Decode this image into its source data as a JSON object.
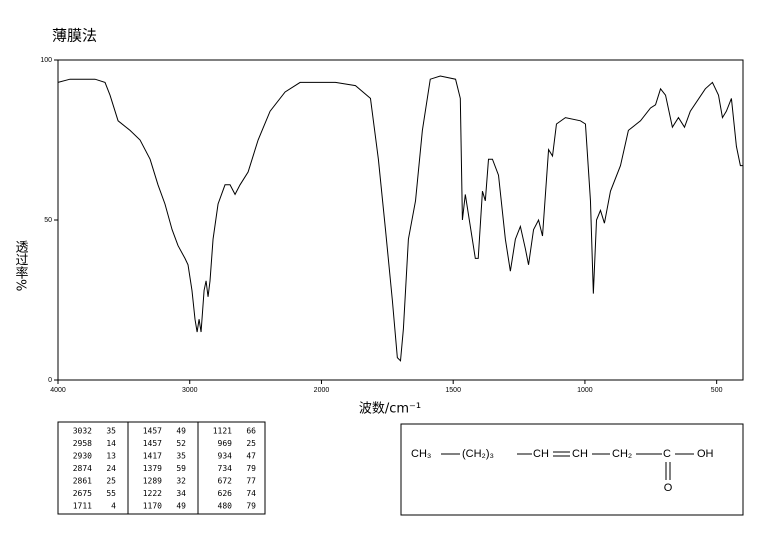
{
  "chart_data": {
    "type": "line",
    "title": "薄膜法",
    "x_label": "波数/cm⁻¹",
    "y_label": "透过率%",
    "x": [
      4000,
      3909,
      3719,
      3643,
      3605,
      3544,
      3453,
      3377,
      3301,
      3241,
      3188,
      3134,
      3089,
      3036,
      3013,
      2983,
      2960,
      2944,
      2929,
      2914,
      2891,
      2876,
      2861,
      2846,
      2823,
      2785,
      2732,
      2694,
      2656,
      2618,
      2557,
      2481,
      2390,
      2276,
      2162,
      2048,
      2000,
      1947,
      1871,
      1814,
      1784,
      1757,
      1731,
      1712,
      1700,
      1689,
      1670,
      1643,
      1617,
      1587,
      1549,
      1491,
      1473,
      1465,
      1454,
      1435,
      1416,
      1405,
      1389,
      1378,
      1366,
      1351,
      1328,
      1302,
      1283,
      1264,
      1245,
      1226,
      1214,
      1195,
      1176,
      1161,
      1138,
      1123,
      1108,
      1074,
      1017,
      998,
      979,
      968,
      956,
      941,
      926,
      903,
      865,
      835,
      789,
      751,
      732,
      713,
      694,
      668,
      645,
      622,
      600,
      543,
      516,
      493,
      478,
      463,
      444,
      425,
      410,
      400
    ],
    "values": [
      93,
      94,
      94,
      93,
      89,
      81,
      78,
      75,
      69,
      61,
      55,
      47,
      42,
      38,
      36,
      28,
      19,
      15,
      19,
      15,
      28,
      31,
      26,
      31,
      44,
      55,
      61,
      61,
      58,
      61,
      65,
      75,
      84,
      90,
      93,
      93,
      93,
      93,
      92,
      88,
      69,
      47,
      25,
      7,
      6,
      16,
      44,
      56,
      78,
      94,
      95,
      94,
      88,
      50,
      58,
      48,
      38,
      38,
      59,
      56,
      69,
      69,
      64,
      44,
      34,
      44,
      48,
      41,
      36,
      47,
      50,
      45,
      72,
      70,
      80,
      82,
      81,
      80,
      56,
      27,
      50,
      53,
      49,
      59,
      67,
      78,
      81,
      85,
      86,
      91,
      89,
      79,
      82,
      79,
      84,
      91,
      93,
      89,
      82,
      84,
      88,
      73,
      67,
      67
    ],
    "color": "#000000",
    "xlim": [
      4000,
      400
    ],
    "ylim": [
      0,
      100
    ],
    "xticks": [
      4000,
      3000,
      2000,
      1500,
      1000,
      500
    ],
    "yticks": [
      0,
      50,
      100
    ]
  },
  "peak_table": {
    "columns": [
      [
        [
          3032,
          35
        ],
        [
          2958,
          14
        ],
        [
          2930,
          13
        ],
        [
          2874,
          24
        ],
        [
          2861,
          25
        ],
        [
          2675,
          55
        ],
        [
          1711,
          4
        ]
      ],
      [
        [
          1457,
          49
        ],
        [
          1457,
          52
        ],
        [
          1417,
          35
        ],
        [
          1379,
          59
        ],
        [
          1289,
          32
        ],
        [
          1222,
          34
        ],
        [
          1170,
          49
        ]
      ],
      [
        [
          1121,
          66
        ],
        [
          969,
          25
        ],
        [
          934,
          47
        ],
        [
          734,
          79
        ],
        [
          672,
          77
        ],
        [
          626,
          74
        ],
        [
          480,
          79
        ]
      ]
    ]
  },
  "structure": {
    "groups": [
      "CH₃",
      "(CH₂)₃",
      "CH",
      "CH",
      "CH₂",
      "C",
      "OH"
    ],
    "carbonyl_oxygen": "O"
  }
}
